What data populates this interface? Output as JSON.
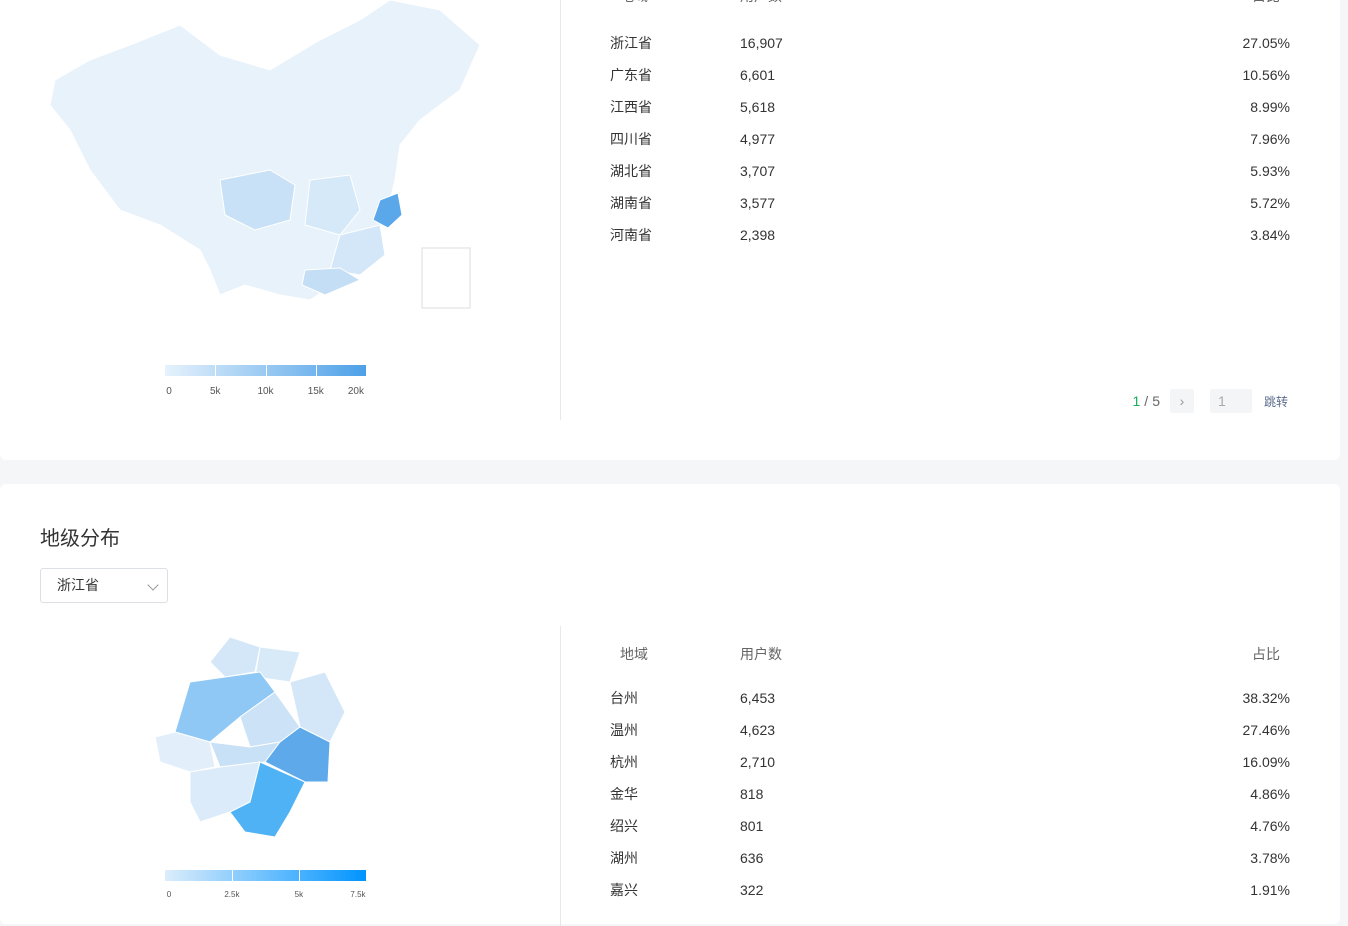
{
  "province": {
    "headers": {
      "region": "地域",
      "users": "用户数",
      "share": "占比"
    },
    "rows": [
      {
        "name": "浙江省",
        "users": "16,907",
        "share": "27.05%"
      },
      {
        "name": "广东省",
        "users": "6,601",
        "share": "10.56%"
      },
      {
        "name": "江西省",
        "users": "5,618",
        "share": "8.99%"
      },
      {
        "name": "四川省",
        "users": "4,977",
        "share": "7.96%"
      },
      {
        "name": "湖北省",
        "users": "3,707",
        "share": "5.93%"
      },
      {
        "name": "湖南省",
        "users": "3,577",
        "share": "5.72%"
      },
      {
        "name": "河南省",
        "users": "2,398",
        "share": "3.84%"
      }
    ],
    "legend_ticks": [
      "0",
      "5k",
      "10k",
      "15k",
      "20k"
    ],
    "legend_colors": [
      "#e6f2fc",
      "#4da0e8"
    ],
    "pager": {
      "current": "1",
      "sep": "/",
      "total": "5",
      "next": "›",
      "input": "1",
      "jump": "跳转"
    }
  },
  "city": {
    "title": "地级分布",
    "select_value": "浙江省",
    "headers": {
      "region": "地域",
      "users": "用户数",
      "share": "占比"
    },
    "rows": [
      {
        "name": "台州",
        "users": "6,453",
        "share": "38.32%"
      },
      {
        "name": "温州",
        "users": "4,623",
        "share": "27.46%"
      },
      {
        "name": "杭州",
        "users": "2,710",
        "share": "16.09%"
      },
      {
        "name": "金华",
        "users": "818",
        "share": "4.86%"
      },
      {
        "name": "绍兴",
        "users": "801",
        "share": "4.76%"
      },
      {
        "name": "湖州",
        "users": "636",
        "share": "3.78%"
      },
      {
        "name": "嘉兴",
        "users": "322",
        "share": "1.91%"
      }
    ],
    "legend_ticks": [
      "0",
      "2.5k",
      "5k",
      "7.5k"
    ],
    "legend_colors": [
      "#dcedfb",
      "#0094ff"
    ]
  }
}
